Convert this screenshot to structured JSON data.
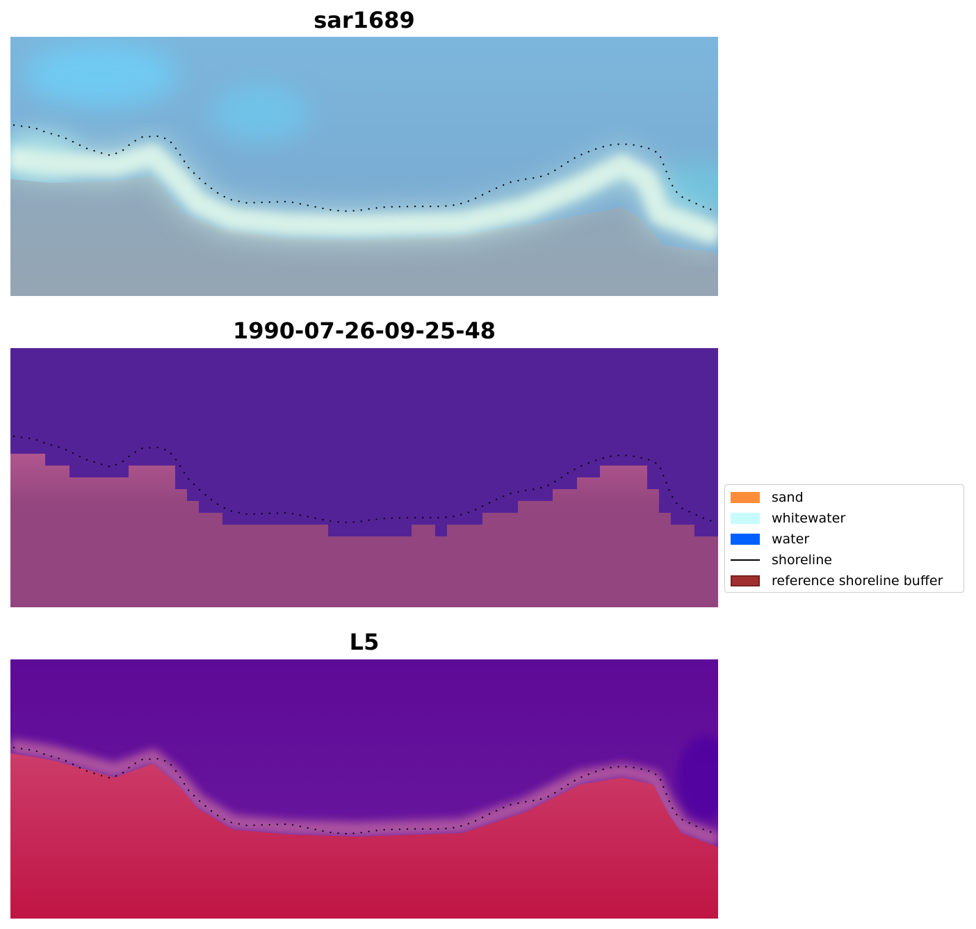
{
  "panels": [
    {
      "title": "sar1689"
    },
    {
      "title": "1990-07-26-09-25-48"
    },
    {
      "title": "L5"
    }
  ],
  "legend": {
    "items": [
      {
        "label": "sand",
        "kind": "patch",
        "color": "#ff8c3a"
      },
      {
        "label": "whitewater",
        "kind": "patch",
        "color": "#c8fbfb"
      },
      {
        "label": "water",
        "kind": "patch",
        "color": "#0060ff"
      },
      {
        "label": "shoreline",
        "kind": "line",
        "color": "#000000"
      },
      {
        "label": "reference shoreline buffer",
        "kind": "patch",
        "color": "#a03030",
        "edge": "#7a1e1e"
      }
    ]
  },
  "colors": {
    "panel1_sky": "#7aa8d0",
    "panel1_foam": "#e2f3ea",
    "panel1_beach": "#90a6b5",
    "panel2_water": "#542297",
    "panel2_land": "#93457f",
    "panel3_water": "#67129a",
    "panel3_land": "#c4204f",
    "shoreline_dots": "#000000"
  }
}
